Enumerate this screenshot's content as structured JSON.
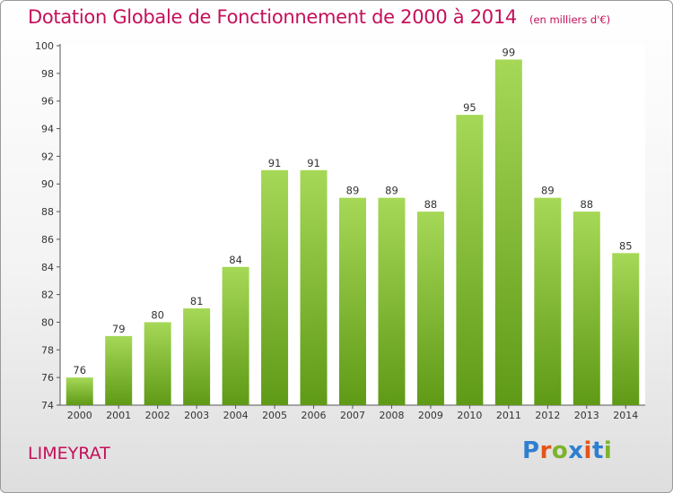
{
  "title": "Dotation Globale de Fonctionnement de 2000 à 2014",
  "unit": "(en milliers d'€)",
  "commune": "LIMEYRAT",
  "logo": {
    "text": "Proxiti",
    "colors": [
      "#2f7fd1",
      "#e4541a",
      "#7cb32a",
      "#2f7fd1",
      "#e4541a",
      "#2f7fd1",
      "#7cb32a"
    ]
  },
  "colors": {
    "bar_top": "#a6d857",
    "bar_bottom": "#5f9a16",
    "accent": "#c4105a"
  },
  "chart_data": {
    "type": "bar",
    "categories": [
      "2000",
      "2001",
      "2002",
      "2003",
      "2004",
      "2005",
      "2006",
      "2007",
      "2008",
      "2009",
      "2010",
      "2011",
      "2012",
      "2013",
      "2014"
    ],
    "values": [
      76,
      79,
      80,
      81,
      84,
      91,
      91,
      89,
      89,
      88,
      95,
      99,
      89,
      88,
      85
    ],
    "ylim": [
      74,
      100
    ],
    "yticks": [
      74,
      76,
      78,
      80,
      82,
      84,
      86,
      88,
      90,
      92,
      94,
      96,
      98,
      100
    ],
    "grid": false,
    "data_labels": true
  }
}
